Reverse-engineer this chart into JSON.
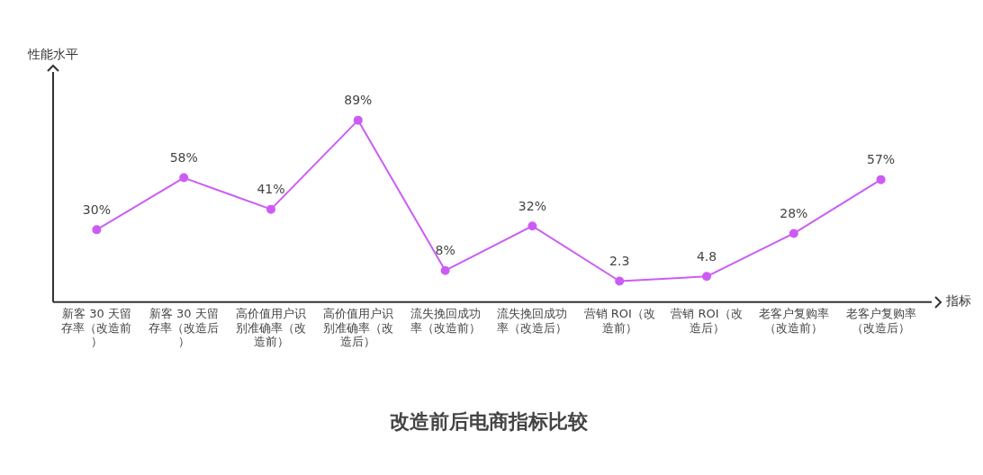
{
  "chart_data": {
    "type": "line",
    "title": "改造前后电商指标比较",
    "xlabel": "指标",
    "ylabel": "性能水平",
    "categories": [
      "新客 30 天留存率（改造前）",
      "新客 30 天留存率（改造后）",
      "高价值用户识别准确率（改造前）",
      "高价值用户识别准确率（改造后）",
      "流失挽回成功率（改造前）",
      "流失挽回成功率（改造后）",
      "营销 ROI（改造前）",
      "营销 ROI（改造后）",
      "老客户复购率（改造前）",
      "老客户复购率（改造后）"
    ],
    "values": [
      30,
      58,
      41,
      89,
      8,
      32,
      2.3,
      4.8,
      28,
      57
    ],
    "value_labels": [
      "30%",
      "58%",
      "41%",
      "89%",
      "8%",
      "32%",
      "2.3",
      "4.8",
      "28%",
      "57%"
    ],
    "color": "#cc5cf5",
    "marker": "circle",
    "line_style": "solid",
    "ylim": [
      -9,
      115
    ],
    "grid": false,
    "legend": false
  }
}
